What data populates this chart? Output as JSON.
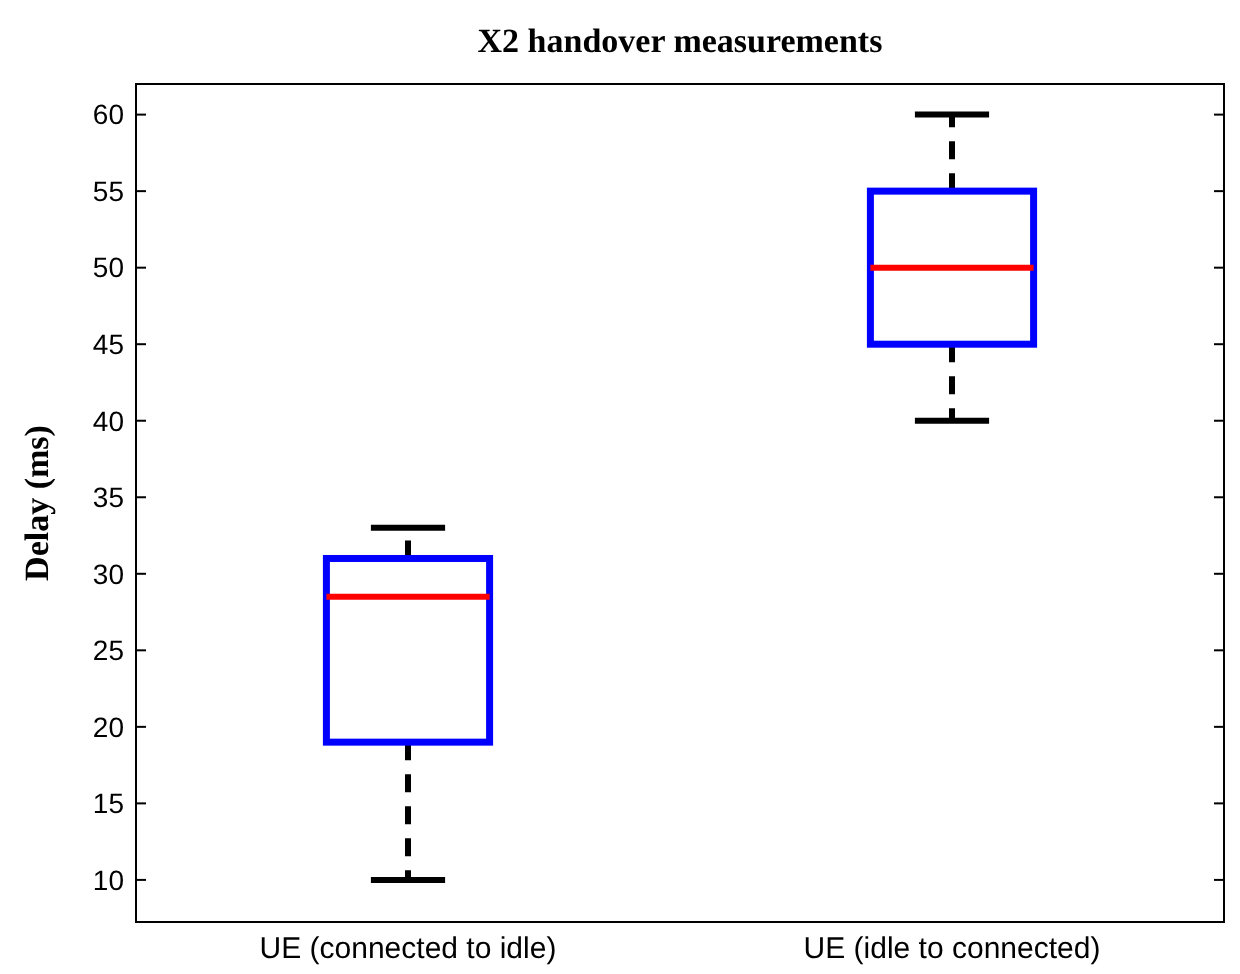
{
  "chart_data": {
    "type": "box",
    "title": "X2 handover measurements",
    "ylabel": "Delay (ms)",
    "categories": [
      "UE (connected to idle)",
      "UE (idle to connected)"
    ],
    "boxes": [
      {
        "low": 10,
        "q1": 19,
        "median": 28.5,
        "q3": 31,
        "high": 33
      },
      {
        "low": 40,
        "q1": 45,
        "median": 50,
        "q3": 55,
        "high": 60
      }
    ],
    "ylim": [
      7.25,
      62
    ],
    "yticks": [
      10,
      15,
      20,
      25,
      30,
      35,
      40,
      45,
      50,
      55,
      60
    ],
    "grid": false
  }
}
